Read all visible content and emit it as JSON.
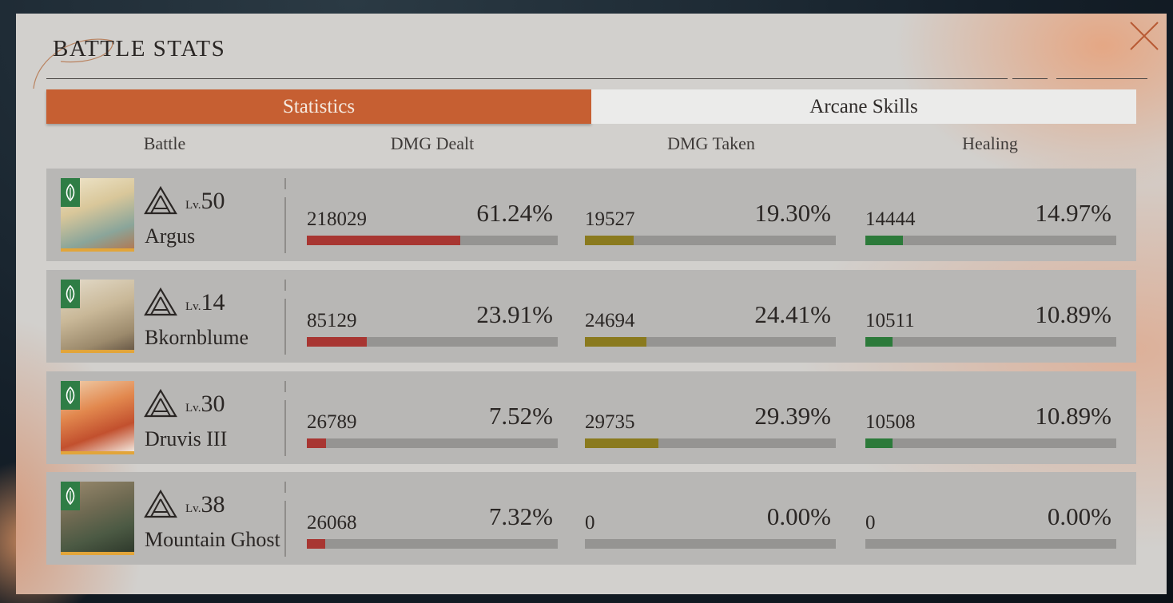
{
  "window": {
    "title": "BATTLE STATS"
  },
  "tabs": [
    {
      "label": "Statistics",
      "active": true
    },
    {
      "label": "Arcane Skills",
      "active": false
    }
  ],
  "columns": [
    "Battle",
    "DMG Dealt",
    "DMG Taken",
    "Healing"
  ],
  "colors": {
    "accent": "#c65f32",
    "dmg_dealt_bar": "#a83632",
    "dmg_taken_bar": "#8a7a1e",
    "healing_bar": "#2c7a3a",
    "avatar_frame": "#e2a53a",
    "element_badge": "#2f7d45"
  },
  "icons": {
    "close": "close-icon",
    "tier": "triangle-tier-icon",
    "element": "leaf-element-icon"
  },
  "rows": [
    {
      "lv_label": "Lv.",
      "level": "50",
      "name": "Argus",
      "dmg_dealt": {
        "value": "218029",
        "percent": "61.24%",
        "fraction": 0.6124
      },
      "dmg_taken": {
        "value": "19527",
        "percent": "19.30%",
        "fraction": 0.193
      },
      "healing": {
        "value": "14444",
        "percent": "14.97%",
        "fraction": 0.1497
      }
    },
    {
      "lv_label": "Lv.",
      "level": "14",
      "name": "Bkornblume",
      "dmg_dealt": {
        "value": "85129",
        "percent": "23.91%",
        "fraction": 0.2391
      },
      "dmg_taken": {
        "value": "24694",
        "percent": "24.41%",
        "fraction": 0.2441
      },
      "healing": {
        "value": "10511",
        "percent": "10.89%",
        "fraction": 0.1089
      }
    },
    {
      "lv_label": "Lv.",
      "level": "30",
      "name": "Druvis III",
      "dmg_dealt": {
        "value": "26789",
        "percent": "7.52%",
        "fraction": 0.0752
      },
      "dmg_taken": {
        "value": "29735",
        "percent": "29.39%",
        "fraction": 0.2939
      },
      "healing": {
        "value": "10508",
        "percent": "10.89%",
        "fraction": 0.1089
      }
    },
    {
      "lv_label": "Lv.",
      "level": "38",
      "name": "Mountain Ghost",
      "dmg_dealt": {
        "value": "26068",
        "percent": "7.32%",
        "fraction": 0.0732
      },
      "dmg_taken": {
        "value": "0",
        "percent": "0.00%",
        "fraction": 0
      },
      "healing": {
        "value": "0",
        "percent": "0.00%",
        "fraction": 0
      }
    }
  ]
}
